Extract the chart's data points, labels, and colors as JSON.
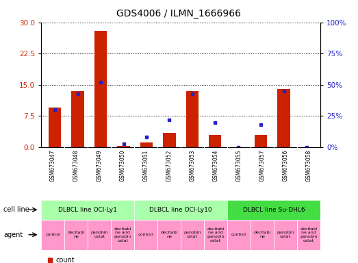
{
  "title": "GDS4006 / ILMN_1666966",
  "samples": [
    "GSM673047",
    "GSM673048",
    "GSM673049",
    "GSM673050",
    "GSM673051",
    "GSM673052",
    "GSM673053",
    "GSM673054",
    "GSM673055",
    "GSM673057",
    "GSM673056",
    "GSM673058"
  ],
  "counts": [
    9.5,
    13.5,
    28.0,
    0.3,
    1.2,
    3.5,
    13.5,
    3.0,
    0.0,
    3.0,
    14.0,
    0.0
  ],
  "percentiles": [
    30,
    43,
    52,
    3,
    8,
    22,
    43,
    20,
    0,
    18,
    45,
    0
  ],
  "ylim_left": [
    0,
    30
  ],
  "ylim_right": [
    0,
    100
  ],
  "yticks_left": [
    0,
    7.5,
    15,
    22.5,
    30
  ],
  "yticks_right": [
    0,
    25,
    50,
    75,
    100
  ],
  "bar_color": "#cc2200",
  "dot_color": "#2222cc",
  "bar_width": 0.55,
  "cell_lines": [
    {
      "label": "DLBCL line OCI-Ly1",
      "start": 0,
      "end": 4,
      "color": "#aaffaa"
    },
    {
      "label": "DLBCL line OCI-Ly10",
      "start": 4,
      "end": 8,
      "color": "#aaffaa"
    },
    {
      "label": "DLBCL line Su-DHL6",
      "start": 8,
      "end": 12,
      "color": "#44dd44"
    }
  ],
  "agents": [
    "control",
    "decitabi\nne",
    "panobin\nostat",
    "decitabi\nne and\npanobin\nostat",
    "control",
    "decitabi\nne",
    "panobin\nostat",
    "decitabi\nne and\npanobin\nostat",
    "control",
    "decitabi\nne",
    "panobin\nostat",
    "decitabi\nne and\npanobin\nostat"
  ],
  "agent_color": "#ff99cc",
  "sample_bg_color": "#cccccc",
  "left_label_color": "#cc2200",
  "right_label_color": "#2222cc",
  "legend_count_color": "#cc2200",
  "legend_pct_color": "#2222cc",
  "figwidth": 5.23,
  "figheight": 3.84,
  "dpi": 100
}
